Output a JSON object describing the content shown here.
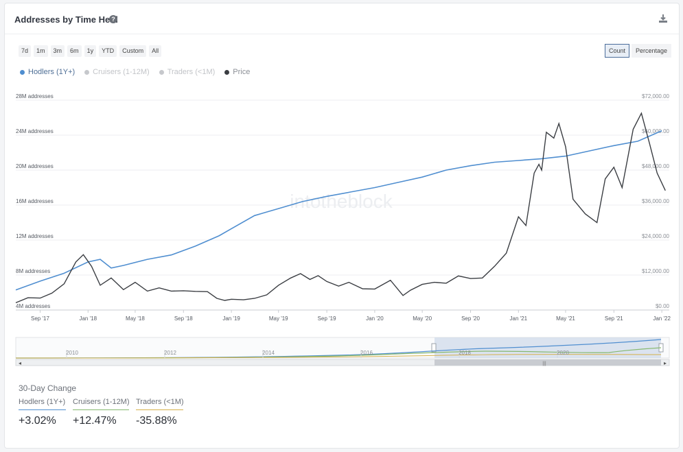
{
  "header": {
    "title": "Addresses by Time Held",
    "help_glyph": "?",
    "download_icon": "download-icon"
  },
  "ranges": [
    "7d",
    "1m",
    "3m",
    "6m",
    "1y",
    "YTD",
    "Custom",
    "All"
  ],
  "modes": [
    {
      "label": "Count",
      "active": true
    },
    {
      "label": "Percentage",
      "active": false
    }
  ],
  "watermark": "intotheblock",
  "chart_data": {
    "type": "line",
    "legend_placement": "top-left",
    "grid": true,
    "series": [
      {
        "name": "Hodlers (1Y+)",
        "color": "#4f8ed0",
        "visible": true,
        "axis": "left",
        "points": [
          [
            "2017-07-01",
            6.3
          ],
          [
            "2017-09-01",
            7.3
          ],
          [
            "2017-11-01",
            8.2
          ],
          [
            "2018-01-01",
            9.5
          ],
          [
            "2018-02-01",
            9.8
          ],
          [
            "2018-03-01",
            8.8
          ],
          [
            "2018-04-01",
            9.1
          ],
          [
            "2018-06-01",
            9.8
          ],
          [
            "2018-08-01",
            10.3
          ],
          [
            "2018-10-01",
            11.3
          ],
          [
            "2018-12-01",
            12.5
          ],
          [
            "2019-01-01",
            13.3
          ],
          [
            "2019-03-01",
            14.8
          ],
          [
            "2019-05-01",
            15.6
          ],
          [
            "2019-07-01",
            16.4
          ],
          [
            "2019-09-01",
            17.0
          ],
          [
            "2019-11-01",
            17.5
          ],
          [
            "2020-01-01",
            18.0
          ],
          [
            "2020-03-01",
            18.6
          ],
          [
            "2020-05-01",
            19.2
          ],
          [
            "2020-07-01",
            20.0
          ],
          [
            "2020-09-01",
            20.5
          ],
          [
            "2020-11-01",
            20.9
          ],
          [
            "2021-01-01",
            21.1
          ],
          [
            "2021-03-01",
            21.3
          ],
          [
            "2021-05-01",
            21.6
          ],
          [
            "2021-07-01",
            22.2
          ],
          [
            "2021-09-01",
            22.8
          ],
          [
            "2021-11-01",
            23.3
          ],
          [
            "2022-01-01",
            24.5
          ]
        ]
      },
      {
        "name": "Cruisers (1-12M)",
        "color": "#c6c8cc",
        "visible": false
      },
      {
        "name": "Traders (<1M)",
        "color": "#c6c8cc",
        "visible": false
      },
      {
        "name": "Price",
        "color": "#3a3d42",
        "visible": true,
        "axis": "right",
        "points": [
          [
            "2017-07-01",
            2500
          ],
          [
            "2017-08-01",
            4200
          ],
          [
            "2017-09-01",
            4100
          ],
          [
            "2017-10-01",
            5800
          ],
          [
            "2017-11-01",
            9000
          ],
          [
            "2017-12-01",
            16500
          ],
          [
            "2017-12-20",
            19000
          ],
          [
            "2018-01-10",
            15000
          ],
          [
            "2018-02-01",
            8500
          ],
          [
            "2018-03-01",
            11000
          ],
          [
            "2018-04-01",
            7000
          ],
          [
            "2018-05-01",
            9500
          ],
          [
            "2018-06-01",
            6500
          ],
          [
            "2018-07-01",
            7600
          ],
          [
            "2018-08-01",
            6500
          ],
          [
            "2018-09-01",
            6600
          ],
          [
            "2018-10-01",
            6400
          ],
          [
            "2018-11-01",
            6300
          ],
          [
            "2018-11-25",
            4000
          ],
          [
            "2018-12-15",
            3300
          ],
          [
            "2019-01-01",
            3700
          ],
          [
            "2019-02-01",
            3500
          ],
          [
            "2019-03-01",
            4000
          ],
          [
            "2019-04-01",
            5200
          ],
          [
            "2019-05-01",
            8500
          ],
          [
            "2019-06-01",
            11000
          ],
          [
            "2019-06-26",
            12500
          ],
          [
            "2019-07-20",
            10500
          ],
          [
            "2019-08-10",
            11800
          ],
          [
            "2019-09-01",
            9800
          ],
          [
            "2019-10-01",
            8200
          ],
          [
            "2019-10-27",
            9500
          ],
          [
            "2019-12-01",
            7300
          ],
          [
            "2020-01-01",
            7200
          ],
          [
            "2020-02-10",
            10200
          ],
          [
            "2020-03-13",
            5000
          ],
          [
            "2020-04-01",
            6800
          ],
          [
            "2020-05-01",
            8800
          ],
          [
            "2020-06-01",
            9500
          ],
          [
            "2020-07-01",
            9200
          ],
          [
            "2020-08-01",
            11700
          ],
          [
            "2020-09-01",
            10800
          ],
          [
            "2020-10-01",
            11000
          ],
          [
            "2020-11-01",
            15000
          ],
          [
            "2020-12-01",
            19500
          ],
          [
            "2021-01-01",
            32000
          ],
          [
            "2021-01-20",
            29000
          ],
          [
            "2021-02-10",
            47000
          ],
          [
            "2021-02-22",
            50000
          ],
          [
            "2021-03-01",
            48000
          ],
          [
            "2021-03-13",
            61000
          ],
          [
            "2021-04-01",
            59000
          ],
          [
            "2021-04-14",
            64000
          ],
          [
            "2021-05-01",
            56000
          ],
          [
            "2021-05-20",
            38000
          ],
          [
            "2021-06-20",
            33000
          ],
          [
            "2021-07-20",
            30000
          ],
          [
            "2021-08-10",
            45000
          ],
          [
            "2021-09-01",
            49000
          ],
          [
            "2021-09-22",
            42000
          ],
          [
            "2021-10-20",
            62000
          ],
          [
            "2021-11-10",
            67500
          ],
          [
            "2021-12-01",
            57000
          ],
          [
            "2021-12-20",
            47000
          ],
          [
            "2022-01-10",
            41000
          ]
        ]
      }
    ],
    "y_left": {
      "ticks": [
        "4M addresses",
        "8M addresses",
        "12M addresses",
        "16M addresses",
        "20M addresses",
        "24M addresses",
        "28M addresses"
      ],
      "range": [
        4,
        28
      ]
    },
    "y_right": {
      "ticks": [
        "$0.00",
        "$12,000.00",
        "$24,000.00",
        "$36,000.00",
        "$48,000.00",
        "$60,000.00",
        "$72,000.00"
      ],
      "range": [
        0,
        72000
      ]
    },
    "x_ticks": [
      "Sep '17",
      "Jan '18",
      "May '18",
      "Sep '18",
      "Jan '19",
      "May '19",
      "Sep '19",
      "Jan '20",
      "May '20",
      "Sep '20",
      "Jan '21",
      "May '21",
      "Sep '21",
      "Jan '22"
    ],
    "navigator_ticks": [
      "2010",
      "2012",
      "2014",
      "2016",
      "2018",
      "2020"
    ]
  },
  "change_30d": {
    "title": "30-Day Change",
    "items": [
      {
        "label": "Hodlers (1Y+)",
        "value": "+3.02%",
        "color": "#4f8ed0"
      },
      {
        "label": "Cruisers (1-12M)",
        "value": "+12.47%",
        "color": "#86b86f"
      },
      {
        "label": "Traders (<1M)",
        "value": "-35.88%",
        "color": "#d6b04a"
      }
    ]
  }
}
